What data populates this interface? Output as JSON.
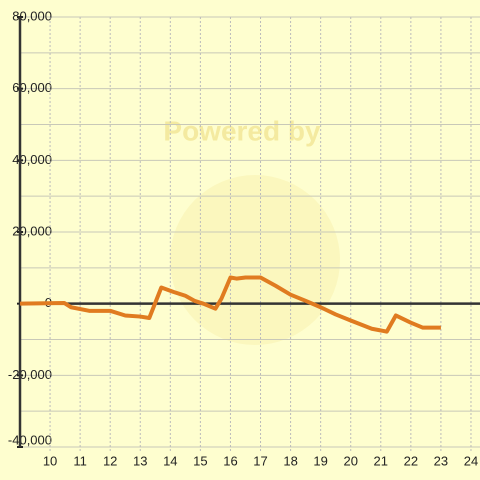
{
  "chart_data": {
    "type": "line",
    "watermark": "Powered by",
    "x": [
      9,
      10.47,
      10.7,
      11.3,
      12,
      12.5,
      13,
      13.3,
      13.7,
      14.1,
      14.5,
      14.8,
      15.1,
      15.5,
      15.7,
      16,
      16.2,
      16.5,
      17,
      17.5,
      18,
      18.5,
      19,
      19.5,
      20,
      20.7,
      21.2,
      21.5,
      22,
      22.4,
      23
    ],
    "values": [
      0,
      200,
      -1000,
      -2000,
      -2000,
      -3300,
      -3600,
      -4000,
      4500,
      3300,
      2200,
      800,
      0,
      -1400,
      1400,
      7300,
      7000,
      7300,
      7300,
      5000,
      2500,
      800,
      -1000,
      -3000,
      -4700,
      -7000,
      -7800,
      -3300,
      -5300,
      -6700,
      -6700
    ],
    "color": "#e07b20",
    "xlim": [
      9,
      24.3
    ],
    "xticks": [
      10,
      11,
      12,
      13,
      14,
      15,
      16,
      17,
      18,
      19,
      20,
      21,
      22,
      23,
      24
    ],
    "ylim": [
      -40000,
      80000
    ],
    "yticks": [
      {
        "value": 80000,
        "label": "80,000"
      },
      {
        "value": 60000,
        "label": "60,000"
      },
      {
        "value": 40000,
        "label": "40,000"
      },
      {
        "value": 20000,
        "label": "20,000"
      },
      0,
      {
        "value": -20000,
        "label": "-20,000"
      },
      {
        "value": -40000,
        "label": "-40,000"
      }
    ],
    "y_minor_ticks": [
      70000,
      50000,
      30000,
      10000,
      -10000,
      -30000
    ],
    "grid": true
  }
}
